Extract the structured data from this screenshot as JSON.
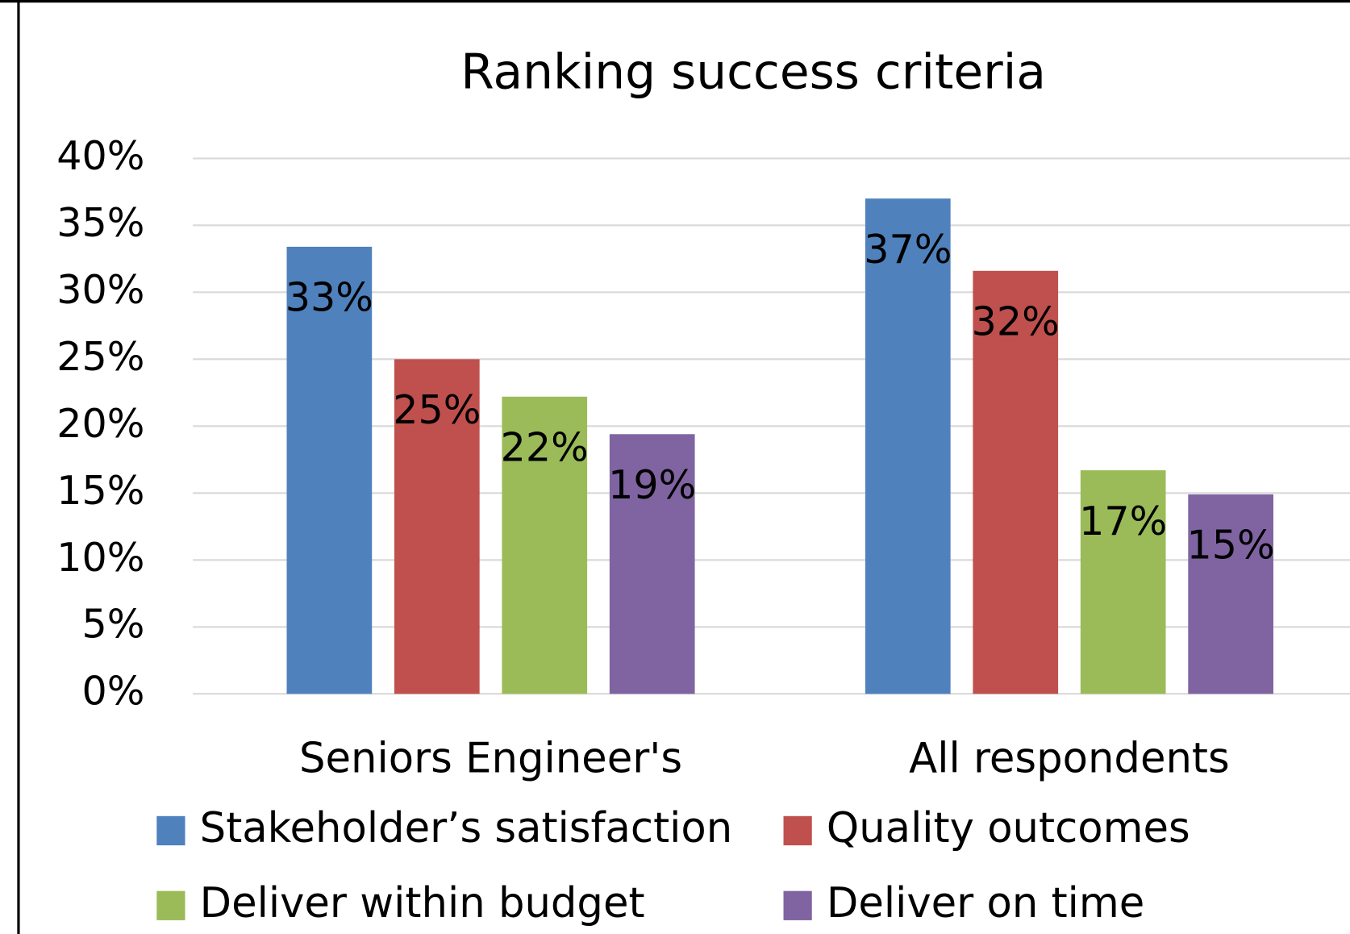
{
  "chart_data": {
    "type": "bar",
    "title": "Ranking success criteria",
    "categories": [
      "Seniors Engineer's",
      "All respondents"
    ],
    "series": [
      {
        "name": "Stakeholder’s satisfaction",
        "color": "#4f81bd",
        "values": [
          33.4,
          37
        ],
        "value_labels": [
          "33%",
          "37%"
        ]
      },
      {
        "name": "Quality outcomes",
        "color": "#c0504d",
        "values": [
          25,
          31.6
        ],
        "value_labels": [
          "25%",
          "32%"
        ]
      },
      {
        "name": "Deliver within budget",
        "color": "#9bbb59",
        "values": [
          22.2,
          16.7
        ],
        "value_labels": [
          "22%",
          "17%"
        ]
      },
      {
        "name": "Deliver on time",
        "color": "#8064a2",
        "values": [
          19.4,
          14.9
        ],
        "value_labels": [
          "19%",
          "15%"
        ]
      }
    ],
    "ylim": [
      0,
      40
    ],
    "yticks": [
      {
        "value": 0,
        "label": "0%"
      },
      {
        "value": 5,
        "label": "5%"
      },
      {
        "value": 10,
        "label": "10%"
      },
      {
        "value": 15,
        "label": "15%"
      },
      {
        "value": 20,
        "label": "20%"
      },
      {
        "value": 25,
        "label": "25%"
      },
      {
        "value": 30,
        "label": "30%"
      },
      {
        "value": 35,
        "label": "35%"
      },
      {
        "value": 40,
        "label": "40%"
      }
    ],
    "grid": true
  }
}
